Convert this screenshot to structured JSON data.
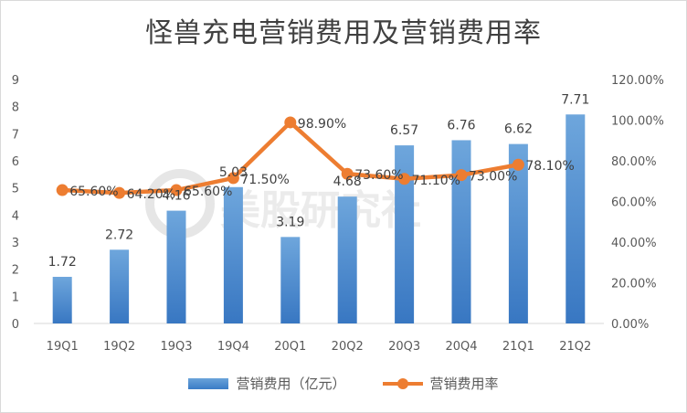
{
  "title": "怪兽充电营销费用及营销费用率",
  "chart_data": {
    "type": "bar",
    "categories": [
      "19Q1",
      "19Q2",
      "19Q3",
      "19Q4",
      "20Q1",
      "20Q2",
      "20Q3",
      "20Q4",
      "21Q1",
      "21Q2"
    ],
    "series": [
      {
        "name": "营销费用（亿元）",
        "type": "bar",
        "values": [
          1.72,
          2.72,
          4.16,
          5.03,
          3.19,
          4.68,
          6.57,
          6.76,
          6.62,
          7.71
        ],
        "labels": [
          "1.72",
          "2.72",
          "4.16",
          "5.03",
          "3.19",
          "4.68",
          "6.57",
          "6.76",
          "6.62",
          "7.71"
        ],
        "axis": "left",
        "color": "#4a8bd1"
      },
      {
        "name": "营销费用率",
        "type": "line",
        "values": [
          65.6,
          64.2,
          65.6,
          71.5,
          98.9,
          73.6,
          71.1,
          73.0,
          78.1,
          null
        ],
        "labels": [
          "65.60%",
          "64.20%",
          "65.60%",
          "71.50%",
          "98.90%",
          "73.60%",
          "71.10%",
          "73.00%",
          "78.10%",
          ""
        ],
        "axis": "right",
        "color": "#ed7d31"
      }
    ],
    "y_left": {
      "min": 0,
      "max": 9,
      "ticks": [
        "0",
        "1",
        "2",
        "3",
        "4",
        "5",
        "6",
        "7",
        "8",
        "9"
      ]
    },
    "y_right": {
      "min": 0,
      "max": 120,
      "ticks": [
        "0.00%",
        "20.00%",
        "40.00%",
        "60.00%",
        "80.00%",
        "100.00%",
        "120.00%"
      ]
    },
    "legend_position": "bottom",
    "grid": false
  },
  "watermark": "美股研究社"
}
